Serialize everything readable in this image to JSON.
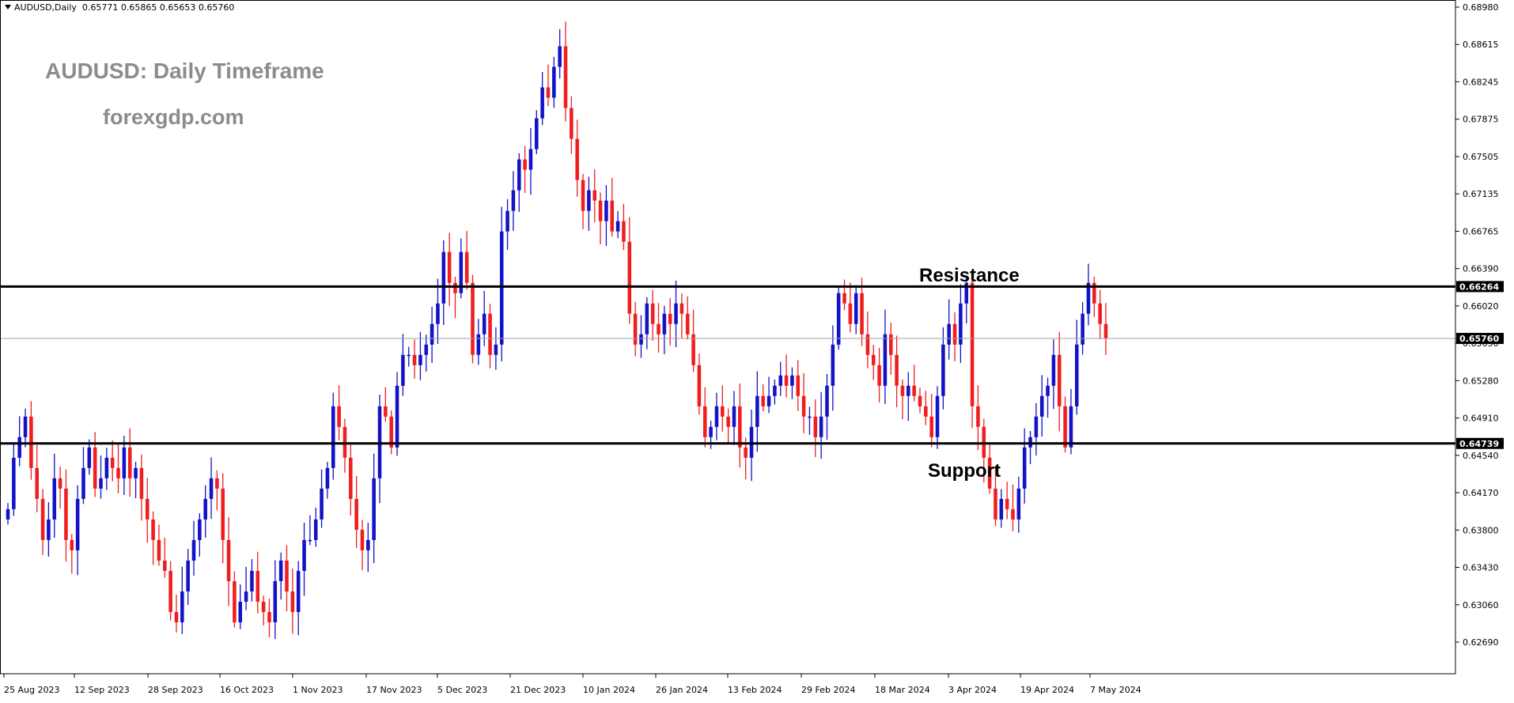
{
  "header": {
    "symbol": "AUDUSD,Daily",
    "open": "0.65771",
    "high": "0.65865",
    "low": "0.65653",
    "close": "0.65760"
  },
  "overlay": {
    "title": "AUDUSD: Daily Timeframe",
    "site": "forexgdp.com"
  },
  "colors": {
    "bull": "#1212c8",
    "bear": "#f01e1e",
    "level_line": "#000000",
    "current_line": "#a0a0a0",
    "background": "#ffffff"
  },
  "chart_data": {
    "type": "candlestick",
    "symbol": "AUDUSD",
    "timeframe": "Daily",
    "ylim": [
      0.625,
      0.6905
    ],
    "y_ticks": [
      "0.68980",
      "0.68615",
      "0.68245",
      "0.67875",
      "0.67505",
      "0.67135",
      "0.66765",
      "0.66390",
      "0.66020",
      "0.65650",
      "0.65280",
      "0.64910",
      "0.64540",
      "0.64170",
      "0.63800",
      "0.63430",
      "0.63060",
      "0.62690"
    ],
    "x_ticks": [
      "25 Aug 2023",
      "12 Sep 2023",
      "28 Sep 2023",
      "16 Oct 2023",
      "1 Nov 2023",
      "17 Nov 2023",
      "5 Dec 2023",
      "21 Dec 2023",
      "10 Jan 2024",
      "26 Jan 2024",
      "13 Feb 2024",
      "29 Feb 2024",
      "18 Mar 2024",
      "3 Apr 2024",
      "19 Apr 2024",
      "7 May 2024"
    ],
    "levels": [
      {
        "name": "Resistance",
        "value": 0.66264,
        "label": "0.66264"
      },
      {
        "name": "Support",
        "value": 0.64739,
        "label": "0.64739"
      }
    ],
    "current_price": {
      "value": 0.6576,
      "label": "0.65760"
    },
    "annotations": [
      "Resistance",
      "Support"
    ],
    "closes_approx": [
      0.641,
      0.646,
      0.648,
      0.65,
      0.645,
      0.642,
      0.638,
      0.64,
      0.644,
      0.643,
      0.638,
      0.637,
      0.642,
      0.645,
      0.647,
      0.643,
      0.644,
      0.646,
      0.645,
      0.644,
      0.647,
      0.644,
      0.645,
      0.642,
      0.64,
      0.638,
      0.636,
      0.635,
      0.631,
      0.63,
      0.633,
      0.636,
      0.638,
      0.64,
      0.642,
      0.644,
      0.643,
      0.638,
      0.634,
      0.63,
      0.632,
      0.633,
      0.635,
      0.632,
      0.631,
      0.63,
      0.634,
      0.636,
      0.633,
      0.631,
      0.635,
      0.638,
      0.638,
      0.64,
      0.643,
      0.645,
      0.651,
      0.649,
      0.646,
      0.642,
      0.639,
      0.637,
      0.638,
      0.644,
      0.651,
      0.65,
      0.647,
      0.653,
      0.656,
      0.656,
      0.655,
      0.656,
      0.657,
      0.659,
      0.661,
      0.666,
      0.663,
      0.662,
      0.666,
      0.663,
      0.656,
      0.658,
      0.66,
      0.656,
      0.657,
      0.668,
      0.67,
      0.672,
      0.675,
      0.674,
      0.676,
      0.679,
      0.682,
      0.681,
      0.684,
      0.686,
      0.68,
      0.677,
      0.673,
      0.67,
      0.672,
      0.671,
      0.669,
      0.671,
      0.668,
      0.669,
      0.667,
      0.66,
      0.657,
      0.658,
      0.661,
      0.659,
      0.658,
      0.66,
      0.659,
      0.661,
      0.66,
      0.658,
      0.655,
      0.651,
      0.648,
      0.649,
      0.651,
      0.65,
      0.649,
      0.651,
      0.647,
      0.646,
      0.649,
      0.652,
      0.651,
      0.652,
      0.653,
      0.654,
      0.653,
      0.654,
      0.652,
      0.65,
      0.65,
      0.648,
      0.65,
      0.653,
      0.657,
      0.662,
      0.661,
      0.659,
      0.662,
      0.658,
      0.656,
      0.655,
      0.653,
      0.658,
      0.656,
      0.653,
      0.652,
      0.653,
      0.652,
      0.651,
      0.65,
      0.648,
      0.652,
      0.657,
      0.659,
      0.657,
      0.661,
      0.663,
      0.651,
      0.649,
      0.646,
      0.643,
      0.64,
      0.642,
      0.641,
      0.64,
      0.643,
      0.647,
      0.648,
      0.65,
      0.652,
      0.653,
      0.656,
      0.651,
      0.647,
      0.651,
      0.657,
      0.66,
      0.663,
      0.661,
      0.659,
      0.6576
    ]
  }
}
